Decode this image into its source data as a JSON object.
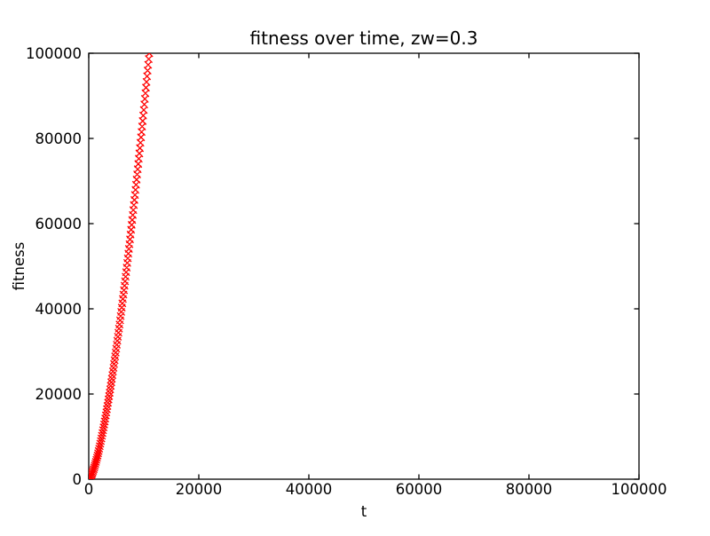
{
  "figure": {
    "background": "#ffffff"
  },
  "chart_data": {
    "type": "scatter",
    "title": "fitness over time, zw=0.3",
    "xlabel": "t",
    "ylabel": "fitness",
    "xlim": [
      0,
      100000
    ],
    "ylim": [
      0,
      100000
    ],
    "xticks": [
      0,
      20000,
      40000,
      60000,
      80000,
      100000
    ],
    "yticks": [
      0,
      20000,
      40000,
      60000,
      80000,
      100000
    ],
    "grid": false,
    "legend": false,
    "axes_style": {
      "tick_direction": "in",
      "ticks_on_all_sides": true,
      "spine_color": "#000000",
      "plot_background": "#ffffff"
    },
    "series": [
      {
        "name": "fitness",
        "marker": "x",
        "color": "#ff0000",
        "marker_size_px": 8,
        "marker_stroke_px": 1.3,
        "sampling": {
          "t_start": 0,
          "t_step": 100,
          "t_end": 11000
        },
        "model": "fitness(t) = 100000 * (t/11000)^1.5",
        "power": 1.5,
        "f_max": 100000,
        "t_max": 11000,
        "sample_points": [
          [
            0,
            0
          ],
          [
            1000,
            2740
          ],
          [
            2000,
            7760
          ],
          [
            3000,
            14240
          ],
          [
            4000,
            21920
          ],
          [
            5000,
            30640
          ],
          [
            6000,
            40280
          ],
          [
            7000,
            50760
          ],
          [
            8000,
            62020
          ],
          [
            9000,
            74000
          ],
          [
            10000,
            86680
          ],
          [
            11000,
            100000
          ]
        ]
      }
    ]
  }
}
